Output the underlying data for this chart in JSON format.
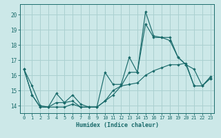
{
  "title": "",
  "xlabel": "Humidex (Indice chaleur)",
  "xlim": [
    -0.5,
    23.5
  ],
  "ylim": [
    13.5,
    20.7
  ],
  "xticks": [
    0,
    1,
    2,
    3,
    4,
    5,
    6,
    7,
    8,
    9,
    10,
    11,
    12,
    13,
    14,
    15,
    16,
    17,
    18,
    19,
    20,
    21,
    22,
    23
  ],
  "yticks": [
    14,
    15,
    16,
    17,
    18,
    19,
    20
  ],
  "background_color": "#cce8e8",
  "grid_color": "#aad0d0",
  "line_color": "#1a6b6b",
  "line1": [
    16.4,
    15.3,
    14.0,
    13.9,
    14.8,
    14.2,
    14.7,
    14.1,
    13.9,
    13.9,
    16.2,
    15.4,
    15.4,
    17.2,
    16.2,
    19.4,
    18.5,
    18.5,
    18.3,
    17.2,
    16.7,
    16.4,
    15.3,
    15.9
  ],
  "line2": [
    16.4,
    14.7,
    13.9,
    13.9,
    13.9,
    13.9,
    14.1,
    13.9,
    13.9,
    13.9,
    14.3,
    14.7,
    15.3,
    15.4,
    15.5,
    16.0,
    16.3,
    16.5,
    16.7,
    16.7,
    16.8,
    15.3,
    15.3,
    15.8
  ],
  "line3": [
    16.4,
    14.7,
    13.9,
    13.9,
    14.2,
    14.2,
    14.3,
    13.9,
    13.9,
    13.9,
    14.3,
    15.0,
    15.3,
    16.2,
    16.2,
    20.2,
    18.6,
    18.5,
    18.5,
    17.2,
    16.7,
    15.3,
    15.3,
    15.8
  ]
}
